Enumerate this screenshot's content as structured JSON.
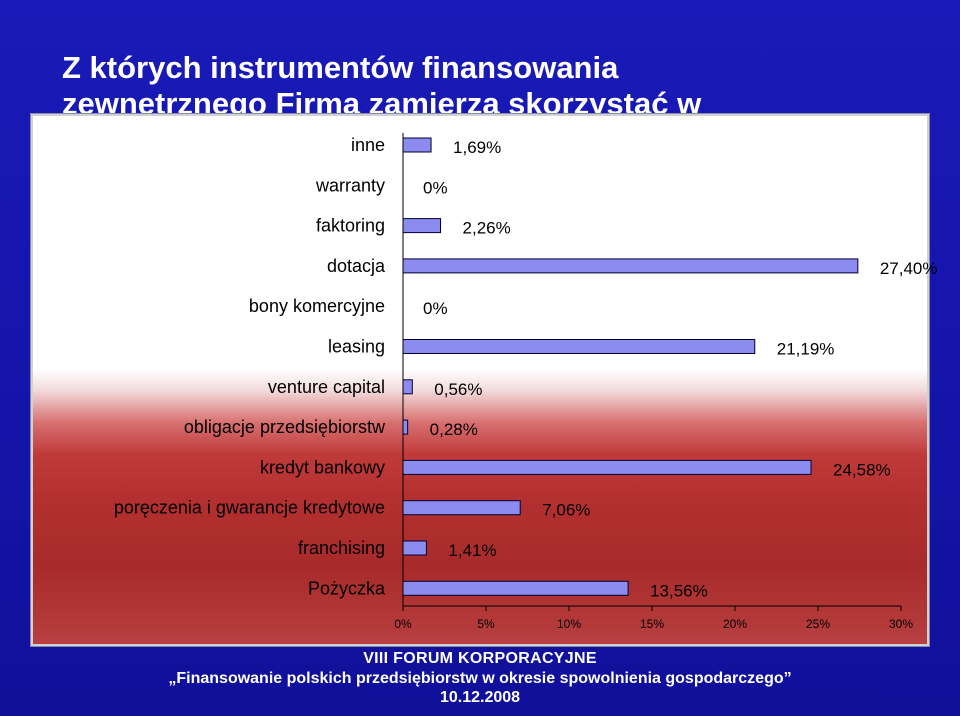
{
  "slide": {
    "title": "Z których instrumentów finansowania\nzewnętrznego Firma zamierza skorzystać w",
    "footer_line1": "VIII FORUM KORPORACYJNE",
    "footer_line2": "„Finansowanie polskich przedsiębiorstw w okresie spowolnienia gospodarczego”",
    "footer_line3": "10.12.2008"
  },
  "colors": {
    "bar_fill": "#8c8cf0",
    "bar_stroke": "#000033",
    "background": "#1a1ab0"
  },
  "chart_data": {
    "type": "bar",
    "orientation": "horizontal",
    "categories": [
      "inne",
      "warranty",
      "faktoring",
      "dotacja",
      "bony komercyjne",
      "leasing",
      "venture capital",
      "obligacje przedsiębiorstw",
      "kredyt bankowy",
      "poręczenia i gwarancje kredytowe",
      "franchising",
      "Pożyczka"
    ],
    "values": [
      1.69,
      0,
      2.26,
      27.4,
      0,
      21.19,
      0.56,
      0.28,
      24.58,
      7.06,
      1.41,
      13.56
    ],
    "value_labels": [
      "1,69%",
      "0%",
      "2,26%",
      "27,40%",
      "0%",
      "21,19%",
      "0,56%",
      "0,28%",
      "24,58%",
      "7,06%",
      "1,41%",
      "13,56%"
    ],
    "xlim": [
      0,
      30
    ],
    "xticks": [
      "0%",
      "5%",
      "10%",
      "15%",
      "20%",
      "25%",
      "30%"
    ],
    "grid": false,
    "legend": "none"
  }
}
